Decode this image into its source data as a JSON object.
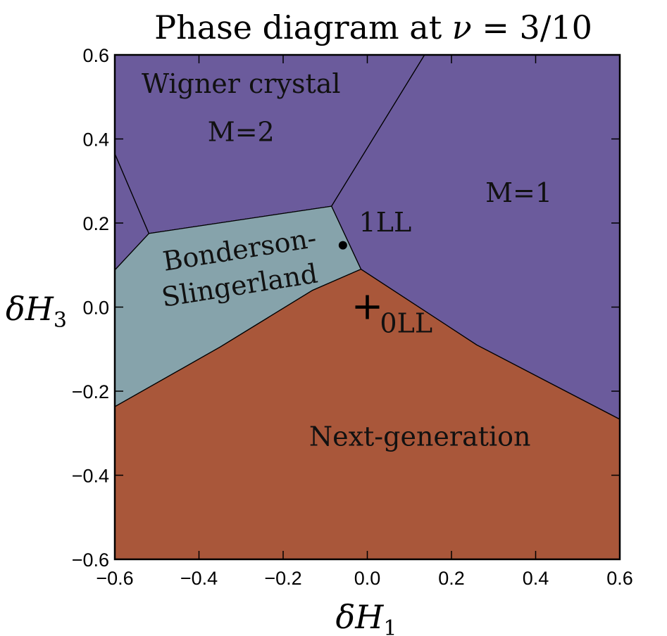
{
  "chart_data": {
    "type": "phase-diagram",
    "title_prefix": "Phase diagram at ",
    "title_symbol": "ν",
    "title_suffix": " = 3/10",
    "xlabel_symbol": "δH",
    "xlabel_subscript": "1",
    "ylabel_symbol": "δH",
    "ylabel_subscript": "3",
    "xlim": [
      -0.6,
      0.6
    ],
    "ylim": [
      -0.6,
      0.6
    ],
    "xticks": [
      "−0.6",
      "−0.4",
      "−0.2",
      "0.0",
      "0.2",
      "0.4",
      "0.6"
    ],
    "yticks": [
      "−0.6",
      "−0.4",
      "−0.2",
      "0.0",
      "0.2",
      "0.4",
      "0.6"
    ],
    "colors": {
      "wigner_m2": "#6b5b9c",
      "m1": "#6b5b9c",
      "bonderson": "#86a3ab",
      "next_generation": "#a9573a",
      "boundary": "#000000"
    },
    "regions": [
      {
        "id": "left-corner",
        "color_key": "wigner_m2",
        "points": [
          [
            -0.6,
            0.088
          ],
          [
            -0.6,
            0.365
          ],
          [
            -0.519,
            0.175
          ]
        ]
      },
      {
        "id": "wigner-m2",
        "color_key": "wigner_m2",
        "points": [
          [
            -0.6,
            0.365
          ],
          [
            -0.6,
            0.6
          ],
          [
            0.136,
            0.6
          ],
          [
            -0.085,
            0.24
          ],
          [
            -0.519,
            0.175
          ]
        ]
      },
      {
        "id": "m1",
        "color_key": "m1",
        "points": [
          [
            0.136,
            0.6
          ],
          [
            0.6,
            0.6
          ],
          [
            0.6,
            -0.267
          ],
          [
            0.26,
            -0.09
          ],
          [
            -0.015,
            0.09
          ],
          [
            -0.085,
            0.24
          ]
        ]
      },
      {
        "id": "bonderson-slingerland",
        "color_key": "bonderson",
        "points": [
          [
            -0.6,
            -0.237
          ],
          [
            -0.6,
            0.088
          ],
          [
            -0.519,
            0.175
          ],
          [
            -0.085,
            0.24
          ],
          [
            -0.015,
            0.09
          ],
          [
            -0.13,
            0.04
          ],
          [
            -0.35,
            -0.095
          ]
        ]
      },
      {
        "id": "next-generation",
        "color_key": "next_generation",
        "points": [
          [
            -0.6,
            -0.6
          ],
          [
            0.6,
            -0.6
          ],
          [
            0.6,
            -0.267
          ],
          [
            0.26,
            -0.09
          ],
          [
            -0.015,
            0.09
          ],
          [
            -0.13,
            0.04
          ],
          [
            -0.35,
            -0.095
          ],
          [
            -0.6,
            -0.237
          ]
        ]
      }
    ],
    "labels": {
      "wigner_line1": "Wigner crystal",
      "wigner_line2": "M=2",
      "m1": "M=1",
      "bonderson_line1": "Bonderson-",
      "bonderson_line2": "Slingerland",
      "next_generation": "Next-generation",
      "point_1ll": "1LL",
      "point_0ll": "0LL"
    },
    "label_positions": {
      "wigner_line1": [
        -0.3,
        0.51
      ],
      "wigner_line2": [
        -0.3,
        0.395
      ],
      "m1": [
        0.36,
        0.25
      ],
      "bonderson_line1": [
        -0.3,
        0.115
      ],
      "bonderson_line2": [
        -0.3,
        0.03
      ],
      "next_generation": [
        0.125,
        -0.33
      ],
      "point_1ll": [
        -0.02,
        0.18
      ],
      "point_0ll": [
        0.03,
        -0.06
      ]
    },
    "points": [
      {
        "id": "1LL",
        "x": -0.058,
        "y": 0.147,
        "marker": "dot"
      },
      {
        "id": "0LL",
        "x": 0.0,
        "y": 0.0,
        "marker": "plus"
      }
    ]
  }
}
